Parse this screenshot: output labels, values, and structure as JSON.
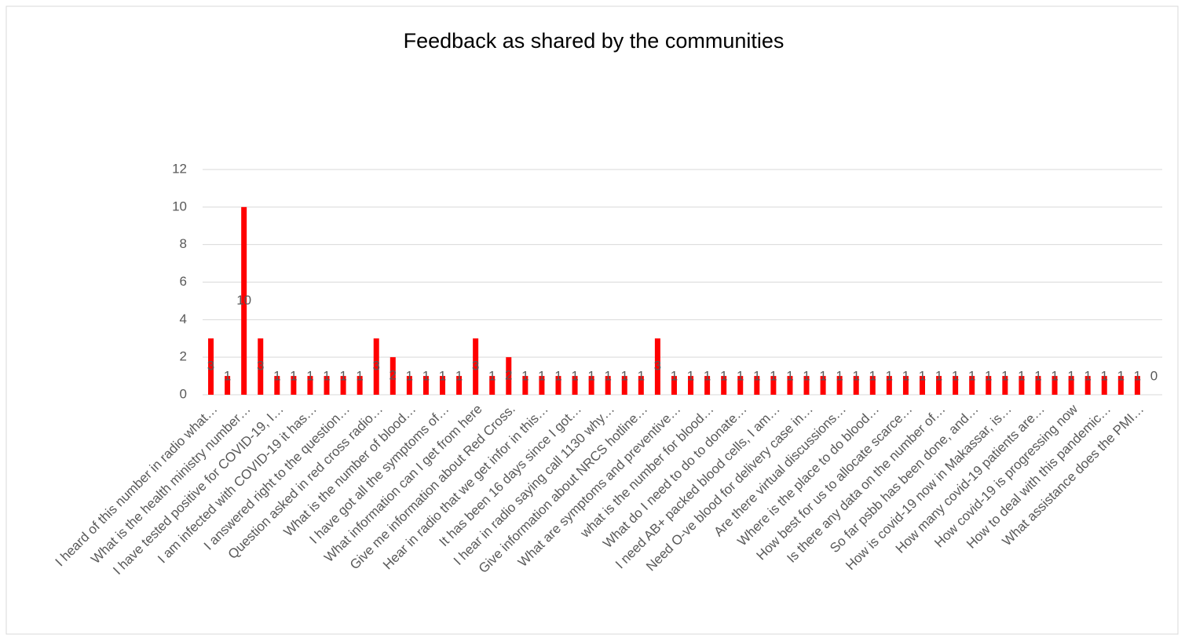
{
  "chart_data": {
    "type": "bar",
    "title": "Feedback as shared by the communities",
    "categories": [
      "I heard of this number in radio what…",
      null,
      "What is the health ministry number…",
      null,
      "I have tested positive for COVID-19, I…",
      null,
      "I am infected with COVID-19 it has…",
      null,
      "I answered right to the question…",
      null,
      "Question asked in red cross radio…",
      null,
      "What is the number of blood…",
      null,
      "I have got all the symptoms of…",
      null,
      "What information can I get from here",
      null,
      "Give me information about Red Cross.",
      null,
      "Hear in radio that we get infor in this…",
      null,
      "It has been 16 days since I got…",
      null,
      "I hear in radio saying call 1130 why…",
      null,
      "Give information about NRCS hotline…",
      null,
      "What are symptoms and preventive…",
      null,
      "what is the number for blood…",
      null,
      "What do I need to do to donate…",
      null,
      "I need AB+ packed blood cells, I am…",
      null,
      "Need O-ve blood for delivery case in…",
      null,
      "Are there virtual discussions…",
      null,
      "Where is the place to do blood…",
      null,
      "How best for us to allocate scarce…",
      null,
      "Is there any data on the number of…",
      null,
      "So far psbb has been done, and…",
      null,
      "How is covid-19 now in Makassar, is…",
      null,
      "How many covid-19 patients are…",
      null,
      "How covid-19 is progressing now",
      null,
      "How to deal with this pandemic…",
      null,
      "What assistance does the PMI…",
      null
    ],
    "values": [
      3,
      1,
      10,
      3,
      1,
      1,
      1,
      1,
      1,
      1,
      3,
      2,
      1,
      1,
      1,
      1,
      3,
      1,
      2,
      1,
      1,
      1,
      1,
      1,
      1,
      1,
      1,
      3,
      1,
      1,
      1,
      1,
      1,
      1,
      1,
      1,
      1,
      1,
      1,
      1,
      1,
      1,
      1,
      1,
      1,
      1,
      1,
      1,
      1,
      1,
      1,
      1,
      1,
      1,
      1,
      1,
      1,
      0
    ],
    "color": "#ff0000",
    "ylim": [
      0,
      12
    ],
    "yticks": [
      0,
      2,
      4,
      6,
      8,
      10,
      12
    ],
    "grid": true,
    "data_labels": true
  }
}
